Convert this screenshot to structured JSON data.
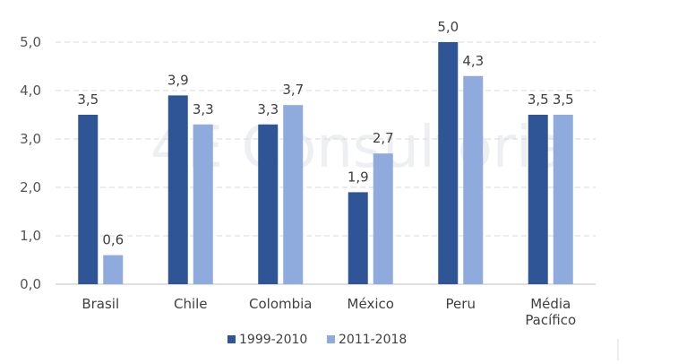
{
  "chart_data": {
    "type": "bar",
    "categories": [
      [
        "Brasil"
      ],
      [
        "Chile"
      ],
      [
        "Colombia"
      ],
      [
        "México"
      ],
      [
        "Peru"
      ],
      [
        "Média",
        "Pacífico"
      ]
    ],
    "series": [
      {
        "name": "1999-2010",
        "values": [
          3.5,
          3.9,
          3.3,
          1.9,
          5.0,
          3.5
        ],
        "labels": [
          "3,5",
          "3,9",
          "3,3",
          "1,9",
          "5,0",
          "3,5"
        ],
        "color": "#2f5597"
      },
      {
        "name": "2011-2018",
        "values": [
          0.6,
          3.3,
          3.7,
          2.7,
          4.3,
          3.5
        ],
        "labels": [
          "0,6",
          "3,3",
          "3,7",
          "2,7",
          "4,3",
          "3,5"
        ],
        "color": "#8faadc"
      }
    ],
    "yticks": [
      "0,0",
      "1,0",
      "2,0",
      "3,0",
      "4,0",
      "5,0"
    ],
    "ylim": [
      0,
      5
    ],
    "grid": true,
    "legend_position": "bottom",
    "watermark": "4E Consultoria"
  }
}
